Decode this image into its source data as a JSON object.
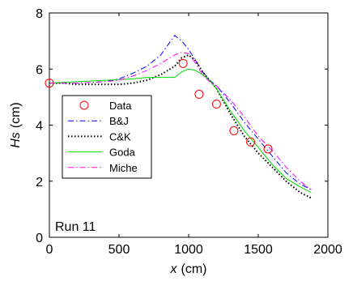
{
  "chart_data": {
    "type": "line",
    "xlabel_var": "x",
    "xlabel_unit": "(cm)",
    "ylabel_var": "Hs",
    "ylabel_unit": "(cm)",
    "xlim": [
      0,
      2000
    ],
    "ylim": [
      0,
      8
    ],
    "xticks": [
      0,
      500,
      1000,
      1500,
      2000
    ],
    "yticks": [
      0,
      2,
      4,
      6,
      8
    ],
    "grid": false,
    "legend_position": "center-left",
    "annotation": "Run 11",
    "series": [
      {
        "name": "Data",
        "style": "markers",
        "marker": "circle",
        "color": "#ff0000",
        "x": [
          0,
          960,
          1075,
          1200,
          1325,
          1445,
          1570
        ],
        "y": [
          5.5,
          6.2,
          5.1,
          4.75,
          3.8,
          3.4,
          3.15
        ]
      },
      {
        "name": "B&J",
        "style": "dashdot",
        "color": "#0000ff",
        "x": [
          0,
          200,
          400,
          500,
          600,
          700,
          800,
          900,
          950,
          1000,
          1100,
          1150,
          1200,
          1300,
          1400,
          1500,
          1600,
          1700,
          1800,
          1880
        ],
        "y": [
          5.5,
          5.5,
          5.55,
          5.65,
          5.85,
          6.1,
          6.5,
          7.2,
          7.0,
          6.7,
          5.9,
          5.6,
          5.4,
          4.8,
          4.1,
          3.5,
          2.9,
          2.3,
          1.9,
          1.7
        ]
      },
      {
        "name": "C&K",
        "style": "dotted",
        "color": "#000000",
        "x": [
          0,
          100,
          200,
          300,
          400,
          500,
          600,
          700,
          800,
          900,
          950,
          1000,
          1050,
          1100,
          1150,
          1200,
          1300,
          1400,
          1500,
          1600,
          1700,
          1800,
          1880
        ],
        "y": [
          5.5,
          5.5,
          5.45,
          5.45,
          5.45,
          5.45,
          5.5,
          5.6,
          5.8,
          6.1,
          6.4,
          6.5,
          6.3,
          5.9,
          5.6,
          5.3,
          4.4,
          3.6,
          3.0,
          2.5,
          2.0,
          1.6,
          1.4
        ]
      },
      {
        "name": "Goda",
        "style": "solid",
        "color": "#00dd00",
        "x": [
          0,
          200,
          400,
          600,
          700,
          900,
          950,
          1000,
          1050,
          1100,
          1150,
          1200,
          1300,
          1400,
          1500,
          1600,
          1700,
          1800,
          1880
        ],
        "y": [
          5.5,
          5.55,
          5.6,
          5.65,
          5.7,
          5.7,
          5.9,
          6.0,
          5.95,
          5.8,
          5.6,
          5.3,
          4.5,
          3.8,
          3.2,
          2.6,
          2.1,
          1.8,
          1.6
        ]
      },
      {
        "name": "Miche",
        "style": "dashdot",
        "color": "#ff00ff",
        "x": [
          0,
          200,
          400,
          500,
          600,
          700,
          800,
          900,
          950,
          1000,
          1050,
          1100,
          1150,
          1200,
          1300,
          1400,
          1500,
          1600,
          1700,
          1800,
          1880
        ],
        "y": [
          5.5,
          5.5,
          5.55,
          5.6,
          5.75,
          5.95,
          6.2,
          6.5,
          6.6,
          6.55,
          6.2,
          5.8,
          5.55,
          5.4,
          4.9,
          4.3,
          3.6,
          3.1,
          2.5,
          2.0,
          1.7
        ]
      }
    ]
  }
}
